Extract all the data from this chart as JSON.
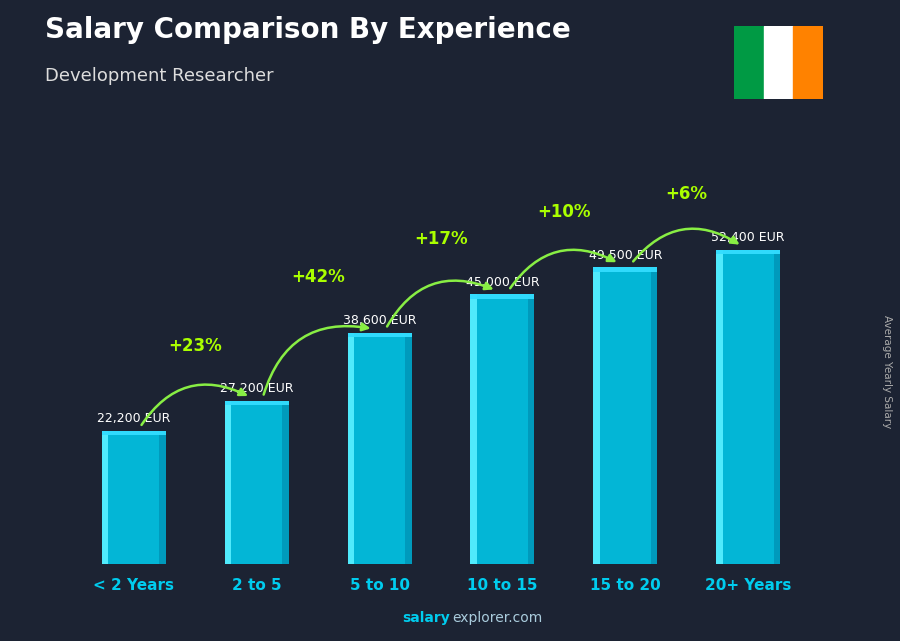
{
  "title": "Salary Comparison By Experience",
  "subtitle": "Development Researcher",
  "categories": [
    "< 2 Years",
    "2 to 5",
    "5 to 10",
    "10 to 15",
    "15 to 20",
    "20+ Years"
  ],
  "values": [
    22200,
    27200,
    38600,
    45000,
    49500,
    52400
  ],
  "salaries": [
    "22,200 EUR",
    "27,200 EUR",
    "38,600 EUR",
    "45,000 EUR",
    "49,500 EUR",
    "52,400 EUR"
  ],
  "increases": [
    null,
    "+23%",
    "+42%",
    "+17%",
    "+10%",
    "+6%"
  ],
  "bar_color_face": "#00ccee",
  "bar_color_left": "#55eeff",
  "bar_color_right": "#0099bb",
  "bar_color_top": "#33ddff",
  "bg_dark": "#1c2333",
  "bg_overlay": "#1a2540",
  "title_color": "#ffffff",
  "subtitle_color": "#dddddd",
  "salary_color": "#ffffff",
  "increase_color": "#aaff00",
  "xlabel_color": "#00ccee",
  "ylabel_text": "Average Yearly Salary",
  "footer_bold": "salary",
  "footer_normal": "explorer.com",
  "ylim_max": 62000,
  "flag_green": "#009A44",
  "flag_white": "#ffffff",
  "flag_orange": "#FF8200",
  "arc_color": "#88ee44"
}
